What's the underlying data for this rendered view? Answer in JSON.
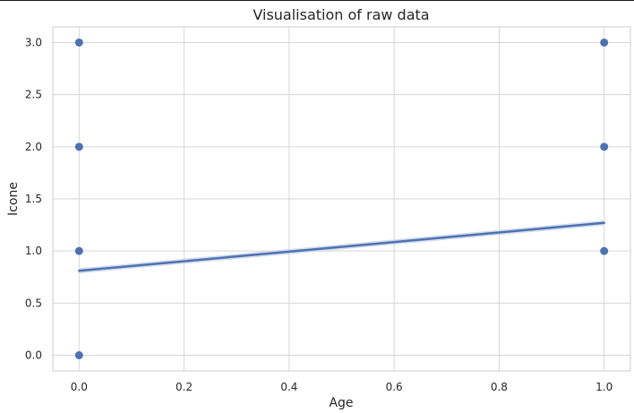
{
  "chart_data": {
    "type": "scatter",
    "title": "Visualisation of raw data",
    "xlabel": "Age",
    "ylabel": "Icone",
    "xlim": [
      -0.05,
      1.05
    ],
    "ylim": [
      -0.15,
      3.15
    ],
    "xticks": [
      0.0,
      0.2,
      0.4,
      0.6,
      0.8,
      1.0
    ],
    "xtick_labels": [
      "0.0",
      "0.2",
      "0.4",
      "0.6",
      "0.8",
      "1.0"
    ],
    "yticks": [
      0.0,
      0.5,
      1.0,
      1.5,
      2.0,
      2.5,
      3.0
    ],
    "ytick_labels": [
      "0.0",
      "0.5",
      "1.0",
      "1.5",
      "2.0",
      "2.5",
      "3.0"
    ],
    "grid": true,
    "points": [
      {
        "x": 0,
        "y": 0
      },
      {
        "x": 0,
        "y": 1
      },
      {
        "x": 0,
        "y": 2
      },
      {
        "x": 0,
        "y": 3
      },
      {
        "x": 1,
        "y": 1
      },
      {
        "x": 1,
        "y": 2
      },
      {
        "x": 1,
        "y": 3
      }
    ],
    "regression_line": {
      "x": [
        0,
        1
      ],
      "y": [
        0.81,
        1.27
      ]
    },
    "colors": {
      "points": "#4c72b0",
      "line": "#4c72b0",
      "ci_band": "#c9d6ea",
      "grid": "#d6d6d6",
      "frame": "#cccccc"
    }
  }
}
